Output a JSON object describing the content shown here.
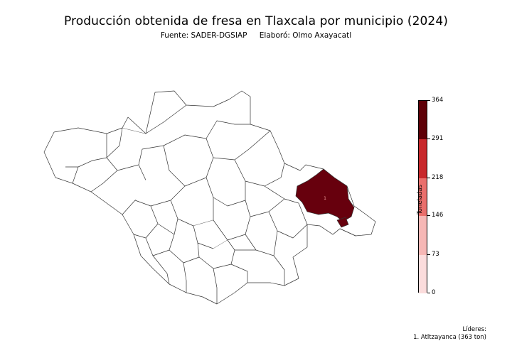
{
  "title": "Producción obtenida de fresa en Tlaxcala por municipio (2024)",
  "source": "Fuente: SADER-DGSIAP",
  "author": "Elaboró: Olmo Axayacatl",
  "colorbar": {
    "label": "Toneladas",
    "ticks": [
      "0",
      "73",
      "146",
      "218",
      "291",
      "364"
    ],
    "segments": [
      {
        "from": 0,
        "to": 73,
        "color": "#fbdcdc"
      },
      {
        "from": 73,
        "to": 146,
        "color": "#f6b7b5"
      },
      {
        "from": 146,
        "to": 218,
        "color": "#ea6f6c"
      },
      {
        "from": 218,
        "to": 291,
        "color": "#c8282b"
      },
      {
        "from": 291,
        "to": 364,
        "color": "#5e0007"
      }
    ],
    "max": 364
  },
  "map": {
    "highlight_label": "1",
    "highlight_color": "#67000d",
    "default_fill": "#ffffff",
    "border_color": "#333333"
  },
  "leaders": {
    "heading": "Líderes:",
    "items": [
      "1. Atltzayanca (363 ton)"
    ]
  }
}
